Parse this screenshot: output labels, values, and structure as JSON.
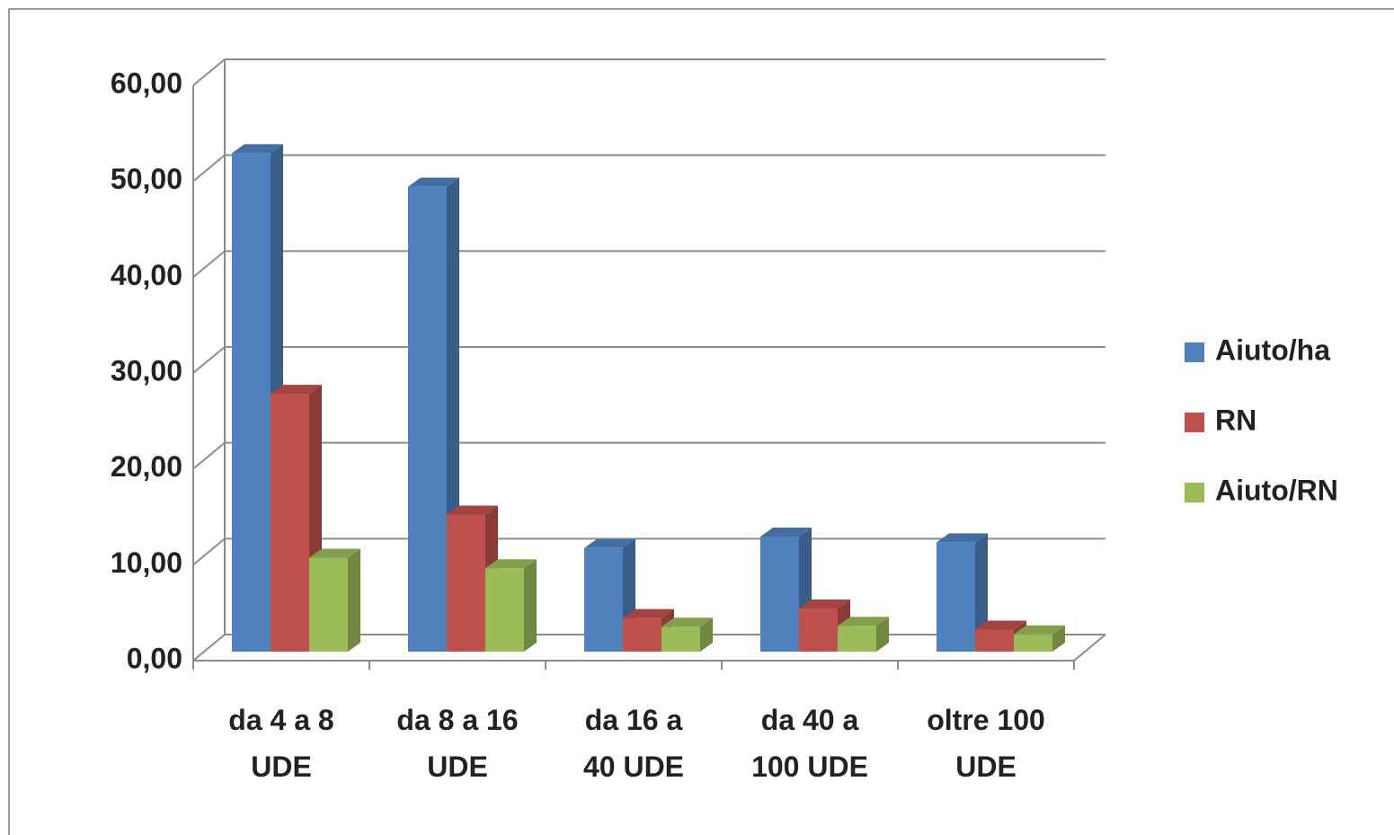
{
  "chart_data": {
    "type": "bar3d",
    "categories": [
      "da 4 a 8\nUDE",
      "da 8 a 16\nUDE",
      "da 16 a\n40 UDE",
      "da 40 a\n100 UDE",
      "oltre 100\nUDE"
    ],
    "series": [
      {
        "name": "Aiuto/ha",
        "color": "#4f81bd",
        "values": [
          52,
          48.5,
          10.8,
          12,
          11.4
        ]
      },
      {
        "name": "RN",
        "color": "#c0504d",
        "values": [
          26.9,
          14.3,
          3.5,
          4.5,
          2.3
        ]
      },
      {
        "name": "Aiuto/RN",
        "color": "#9bbb59",
        "values": [
          9.8,
          8.7,
          2.6,
          2.7,
          1.8
        ]
      }
    ],
    "ylim": [
      0,
      60
    ],
    "yticks": [
      {
        "value": 0,
        "label": "0,00"
      },
      {
        "value": 10,
        "label": "10,00"
      },
      {
        "value": 20,
        "label": "20,00"
      },
      {
        "value": 30,
        "label": "30,00"
      },
      {
        "value": 40,
        "label": "40,00"
      },
      {
        "value": 50,
        "label": "50,00"
      },
      {
        "value": 60,
        "label": "60,00"
      }
    ],
    "grid": true,
    "legend": "right"
  }
}
